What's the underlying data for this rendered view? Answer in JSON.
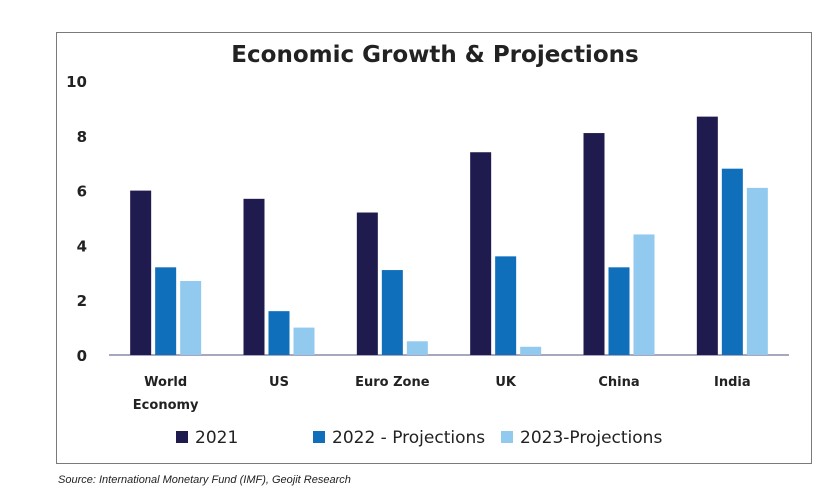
{
  "chart_data": {
    "type": "bar",
    "title": "Economic Growth & Projections",
    "xlabel": "",
    "ylabel": "",
    "ylim": [
      0,
      10
    ],
    "yticks": [
      0,
      2,
      4,
      6,
      8,
      10
    ],
    "categories": [
      [
        "World",
        "Economy"
      ],
      [
        "US"
      ],
      [
        "Euro Zone"
      ],
      [
        "UK"
      ],
      [
        "China"
      ],
      [
        "India"
      ]
    ],
    "series": [
      {
        "name": "2021",
        "color": "#1f1b4f",
        "values": [
          6.0,
          5.7,
          5.2,
          7.4,
          8.1,
          8.7
        ]
      },
      {
        "name": "2022 - Projections",
        "color": "#0f6fba",
        "values": [
          3.2,
          1.6,
          3.1,
          3.6,
          3.2,
          6.8
        ]
      },
      {
        "name": "2023-Projections",
        "color": "#92c9ee",
        "values": [
          2.7,
          1.0,
          0.5,
          0.3,
          4.4,
          6.1
        ]
      }
    ],
    "legend_position": "bottom",
    "grid": false
  },
  "source": "Source: International Monetary Fund (IMF), Geojit Research"
}
